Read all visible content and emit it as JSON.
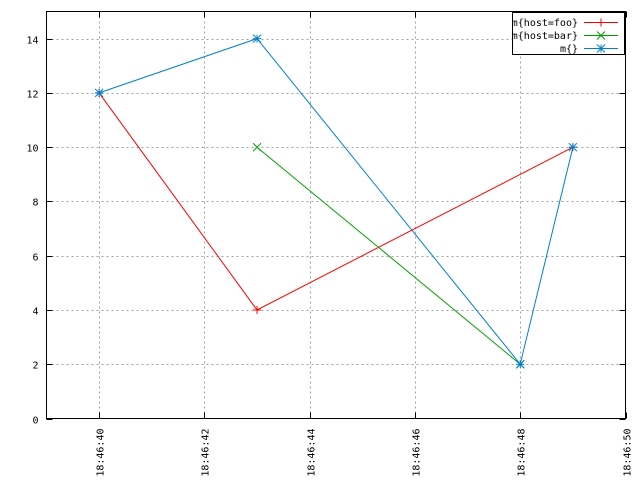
{
  "chart_data": {
    "type": "line",
    "x_ticks": [
      "18:46:40",
      "18:46:42",
      "18:46:44",
      "18:46:46",
      "18:46:48",
      "18:46:50"
    ],
    "y_ticks": [
      "0",
      "2",
      "4",
      "6",
      "8",
      "10",
      "12",
      "14"
    ],
    "xlim": [
      "18:46:39",
      "18:46:50"
    ],
    "ylim": [
      0,
      15
    ],
    "grid": true,
    "legend_position": "top-right",
    "series": [
      {
        "name": "m{host=foo}",
        "color": "#ff0000",
        "marker": "plus",
        "points": [
          {
            "x": "18:46:40",
            "y": 12
          },
          {
            "x": "18:46:43",
            "y": 4
          },
          {
            "x": "18:46:49",
            "y": 10
          }
        ]
      },
      {
        "name": "m{host=bar}",
        "color": "#00a000",
        "marker": "cross",
        "points": [
          {
            "x": "18:46:43",
            "y": 10
          },
          {
            "x": "18:46:48",
            "y": 2
          }
        ]
      },
      {
        "name": "m{}",
        "color": "#0080cc",
        "marker": "star",
        "points": [
          {
            "x": "18:46:40",
            "y": 12
          },
          {
            "x": "18:46:43",
            "y": 14
          },
          {
            "x": "18:46:48",
            "y": 2
          },
          {
            "x": "18:46:49",
            "y": 10
          }
        ]
      }
    ]
  }
}
